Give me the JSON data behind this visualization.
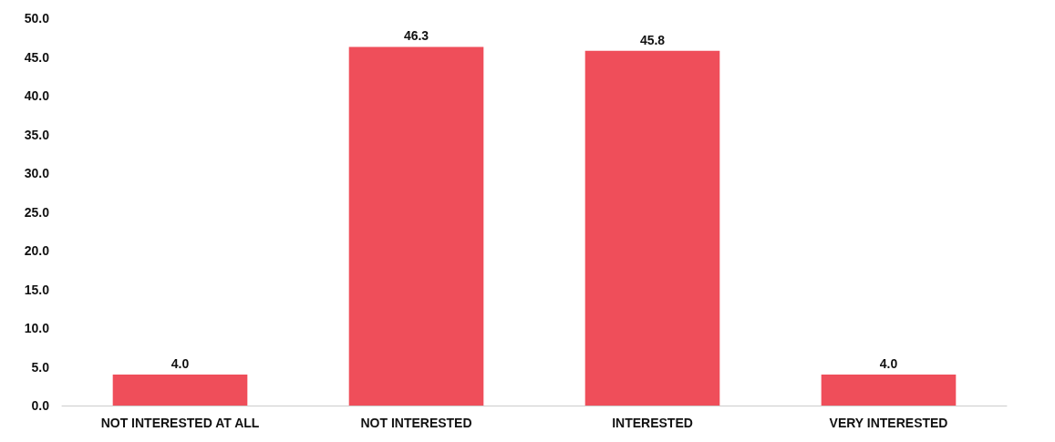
{
  "chart_data": {
    "type": "bar",
    "categories": [
      "NOT INTERESTED AT ALL",
      "NOT INTERESTED",
      "INTERESTED",
      "VERY INTERESTED"
    ],
    "values": [
      4.0,
      46.3,
      45.8,
      4.0
    ],
    "value_labels": [
      "4.0",
      "46.3",
      "45.8",
      "4.0"
    ],
    "color": "#ef4e5a",
    "ylim": [
      0,
      50
    ],
    "yticks": [
      {
        "value": 0,
        "label": "0.0"
      },
      {
        "value": 5,
        "label": "5.0"
      },
      {
        "value": 10,
        "label": "10.0"
      },
      {
        "value": 15,
        "label": "15.0"
      },
      {
        "value": 20,
        "label": "20.0"
      },
      {
        "value": 25,
        "label": "25.0"
      },
      {
        "value": 30,
        "label": "30.0"
      },
      {
        "value": 35,
        "label": "35.0"
      },
      {
        "value": 40,
        "label": "40.0"
      },
      {
        "value": 45,
        "label": "45.0"
      },
      {
        "value": 50,
        "label": "50.0"
      }
    ],
    "grid": false
  }
}
